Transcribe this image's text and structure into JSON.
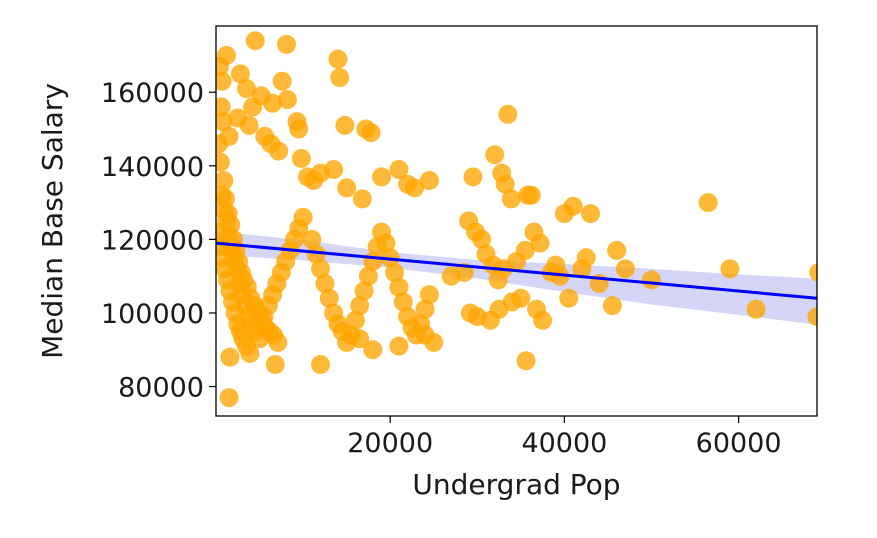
{
  "chart_data": {
    "type": "scatter",
    "title": "",
    "xlabel": "Undergrad Pop",
    "ylabel": "Median Base Salary",
    "xlim": [
      0,
      69000
    ],
    "ylim": [
      72000,
      178000
    ],
    "x_ticks": [
      20000,
      40000,
      60000
    ],
    "y_ticks": [
      80000,
      100000,
      120000,
      140000,
      160000
    ],
    "grid": false,
    "legend": "none",
    "colors": {
      "points": "#FFA500",
      "regression_line": "#0000FF",
      "confidence_band": "#B3B3F2"
    },
    "regression": {
      "x": [
        0,
        69000
      ],
      "y": [
        119000,
        104000
      ]
    },
    "confidence_band": {
      "x": [
        0,
        10000,
        20000,
        30000,
        40000,
        50000,
        60000,
        69000
      ],
      "lower": [
        115800,
        114300,
        112300,
        109400,
        105700,
        102300,
        99500,
        96800
      ],
      "upper": [
        122200,
        119800,
        116500,
        114400,
        113300,
        112000,
        110500,
        109300
      ]
    },
    "points": [
      [
        400,
        167000
      ],
      [
        700,
        163000
      ],
      [
        1200,
        170000
      ],
      [
        2800,
        165000
      ],
      [
        3500,
        161000
      ],
      [
        4500,
        174000
      ],
      [
        5200,
        159000
      ],
      [
        6500,
        157000
      ],
      [
        7600,
        163000
      ],
      [
        8200,
        158000
      ],
      [
        9300,
        152000
      ],
      [
        9500,
        150000
      ],
      [
        8100,
        173000
      ],
      [
        14000,
        169000
      ],
      [
        14200,
        164000
      ],
      [
        14800,
        151000
      ],
      [
        17200,
        150000
      ],
      [
        17800,
        149000
      ],
      [
        600,
        156000
      ],
      [
        800,
        152000
      ],
      [
        1500,
        148000
      ],
      [
        2500,
        153000
      ],
      [
        3800,
        151000
      ],
      [
        4200,
        156000
      ],
      [
        5600,
        148000
      ],
      [
        6300,
        146000
      ],
      [
        7200,
        144000
      ],
      [
        9800,
        142000
      ],
      [
        10500,
        137000
      ],
      [
        11200,
        136000
      ],
      [
        12000,
        138000
      ],
      [
        13500,
        139000
      ],
      [
        15000,
        134000
      ],
      [
        16800,
        131000
      ],
      [
        19000,
        137000
      ],
      [
        21000,
        139000
      ],
      [
        22000,
        135000
      ],
      [
        22800,
        134000
      ],
      [
        24500,
        136000
      ],
      [
        29500,
        137000
      ],
      [
        32000,
        143000
      ],
      [
        32800,
        138000
      ],
      [
        33200,
        135000
      ],
      [
        33900,
        131000
      ],
      [
        35800,
        132000
      ],
      [
        36200,
        132000
      ],
      [
        33500,
        154000
      ],
      [
        300,
        146000
      ],
      [
        500,
        141000
      ],
      [
        900,
        136000
      ],
      [
        1100,
        131000
      ],
      [
        1400,
        127000
      ],
      [
        1700,
        124000
      ],
      [
        2000,
        120000
      ],
      [
        2300,
        117000
      ],
      [
        2600,
        114000
      ],
      [
        2900,
        111000
      ],
      [
        3200,
        109000
      ],
      [
        3600,
        107000
      ],
      [
        4000,
        104000
      ],
      [
        4400,
        102000
      ],
      [
        4800,
        100000
      ],
      [
        5200,
        98000
      ],
      [
        5700,
        96000
      ],
      [
        6100,
        95000
      ],
      [
        6600,
        94000
      ],
      [
        7100,
        92000
      ],
      [
        400,
        122000
      ],
      [
        600,
        118000
      ],
      [
        800,
        115000
      ],
      [
        1000,
        112000
      ],
      [
        1300,
        109000
      ],
      [
        1600,
        106000
      ],
      [
        1900,
        103000
      ],
      [
        2200,
        100000
      ],
      [
        2500,
        97000
      ],
      [
        2800,
        95000
      ],
      [
        3100,
        93000
      ],
      [
        3500,
        91000
      ],
      [
        3900,
        89000
      ],
      [
        700,
        132000
      ],
      [
        900,
        128000
      ],
      [
        1200,
        125000
      ],
      [
        1500,
        121000
      ],
      [
        1800,
        118000
      ],
      [
        2100,
        115000
      ],
      [
        2400,
        112000
      ],
      [
        2700,
        108000
      ],
      [
        3000,
        105000
      ],
      [
        3300,
        102000
      ],
      [
        3700,
        99000
      ],
      [
        4100,
        97000
      ],
      [
        4500,
        95000
      ],
      [
        5000,
        93000
      ],
      [
        5500,
        99000
      ],
      [
        6000,
        102000
      ],
      [
        6500,
        105000
      ],
      [
        7000,
        108000
      ],
      [
        7500,
        111000
      ],
      [
        8000,
        114000
      ],
      [
        8500,
        117000
      ],
      [
        9000,
        120000
      ],
      [
        9500,
        123000
      ],
      [
        10000,
        126000
      ],
      [
        11000,
        120000
      ],
      [
        11500,
        116000
      ],
      [
        12000,
        112000
      ],
      [
        12500,
        108000
      ],
      [
        13000,
        104000
      ],
      [
        13500,
        100000
      ],
      [
        14000,
        97000
      ],
      [
        14500,
        95000
      ],
      [
        15000,
        92000
      ],
      [
        15500,
        94000
      ],
      [
        16000,
        98000
      ],
      [
        16500,
        102000
      ],
      [
        17000,
        106000
      ],
      [
        17500,
        110000
      ],
      [
        18000,
        114000
      ],
      [
        18500,
        118000
      ],
      [
        19000,
        122000
      ],
      [
        19500,
        119000
      ],
      [
        20000,
        115000
      ],
      [
        20500,
        111000
      ],
      [
        21000,
        107000
      ],
      [
        21500,
        103000
      ],
      [
        22000,
        99000
      ],
      [
        22500,
        96000
      ],
      [
        23000,
        94000
      ],
      [
        23500,
        97000
      ],
      [
        24000,
        101000
      ],
      [
        24500,
        105000
      ],
      [
        25000,
        92000
      ],
      [
        12000,
        86000
      ],
      [
        16500,
        93000
      ],
      [
        18000,
        90000
      ],
      [
        21000,
        91000
      ],
      [
        24000,
        94000
      ],
      [
        27000,
        110000
      ],
      [
        28500,
        111000
      ],
      [
        29200,
        100000
      ],
      [
        30000,
        99000
      ],
      [
        31500,
        98000
      ],
      [
        32500,
        101000
      ],
      [
        34000,
        103000
      ],
      [
        35000,
        104000
      ],
      [
        35600,
        87000
      ],
      [
        36800,
        101000
      ],
      [
        37500,
        98000
      ],
      [
        29000,
        125000
      ],
      [
        29800,
        122000
      ],
      [
        30500,
        120000
      ],
      [
        31000,
        116000
      ],
      [
        31800,
        113000
      ],
      [
        32400,
        109000
      ],
      [
        33000,
        112000
      ],
      [
        34500,
        114000
      ],
      [
        35500,
        117000
      ],
      [
        36500,
        122000
      ],
      [
        37200,
        119000
      ],
      [
        39000,
        113000
      ],
      [
        40000,
        127000
      ],
      [
        41000,
        129000
      ],
      [
        42000,
        112000
      ],
      [
        42500,
        115000
      ],
      [
        43000,
        127000
      ],
      [
        44000,
        108000
      ],
      [
        45500,
        102000
      ],
      [
        46000,
        117000
      ],
      [
        39500,
        110000
      ],
      [
        38500,
        111000
      ],
      [
        40500,
        104000
      ],
      [
        47000,
        112000
      ],
      [
        50000,
        109000
      ],
      [
        56500,
        130000
      ],
      [
        59000,
        112000
      ],
      [
        62000,
        101000
      ],
      [
        69000,
        99000
      ],
      [
        69200,
        111000
      ],
      [
        1500,
        77000
      ],
      [
        1600,
        88000
      ],
      [
        6800,
        86000
      ]
    ]
  }
}
